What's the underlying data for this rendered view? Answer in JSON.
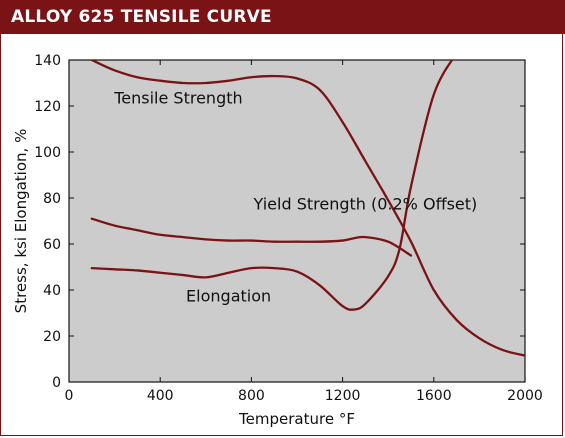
{
  "header": {
    "title": "ALLOY 625 TENSILE CURVE"
  },
  "colors": {
    "accent": "#7a1315",
    "plot_bg": "#cccccc",
    "curve": "#7a1315"
  },
  "chart_data": {
    "type": "line",
    "xlabel": "Temperature °F",
    "ylabel": "Stress, ksi   Elongation, %",
    "xlim": [
      0,
      2000
    ],
    "ylim": [
      0,
      140
    ],
    "xticks": [
      0,
      400,
      800,
      1200,
      1600,
      2000
    ],
    "yticks": [
      0,
      20,
      40,
      60,
      80,
      100,
      120,
      140
    ],
    "annotations": [
      {
        "text": "Tensile Strength",
        "x": 480,
        "y": 121
      },
      {
        "text": "Yield Strength (0.2% Offset)",
        "x": 1300,
        "y": 75
      },
      {
        "text": "Elongation",
        "x": 700,
        "y": 35
      }
    ],
    "series": [
      {
        "name": "Tensile Strength",
        "x": [
          100,
          200,
          300,
          400,
          500,
          600,
          700,
          800,
          900,
          1000,
          1100,
          1200,
          1300,
          1400,
          1500,
          1600,
          1700,
          1800,
          1900,
          2000
        ],
        "y": [
          140,
          135.5,
          132.5,
          131,
          130,
          130,
          131,
          132.5,
          133,
          132,
          127,
          113,
          96,
          79,
          61,
          40,
          27,
          19,
          14,
          11.5
        ]
      },
      {
        "name": "Yield Strength (0.2% Offset)",
        "x": [
          100,
          200,
          300,
          400,
          500,
          600,
          700,
          800,
          900,
          1000,
          1100,
          1200,
          1250,
          1300,
          1400,
          1500
        ],
        "y": [
          71,
          68,
          66,
          64,
          63,
          62,
          61.5,
          61.5,
          61,
          61,
          61,
          61.5,
          62.5,
          63,
          61,
          55
        ]
      },
      {
        "name": "Elongation",
        "x": [
          100,
          200,
          300,
          400,
          500,
          600,
          700,
          800,
          900,
          1000,
          1100,
          1200,
          1250,
          1300,
          1400,
          1450,
          1500,
          1600,
          1700
        ],
        "y": [
          49.5,
          49,
          48.5,
          47.5,
          46.5,
          45.5,
          47.5,
          49.5,
          49.5,
          48,
          42,
          33,
          31.5,
          34,
          46,
          58,
          85,
          125,
          143
        ]
      }
    ]
  }
}
